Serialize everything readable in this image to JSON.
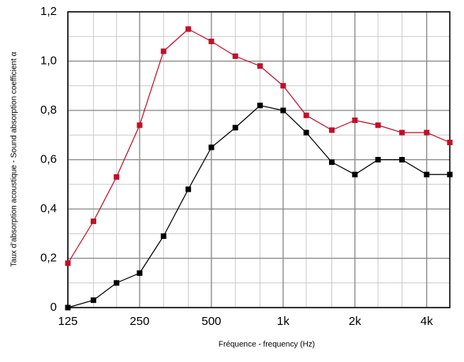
{
  "chart_data": {
    "type": "line",
    "x_label": "Fréquence - frequency (Hz)",
    "y_label": "Taux d'absorption acoustique - Sound absorption coefficient α",
    "x": [
      125,
      160,
      200,
      250,
      315,
      400,
      500,
      630,
      800,
      1000,
      1250,
      1600,
      2000,
      2500,
      3150,
      4000,
      5000
    ],
    "series": [
      {
        "color": "#c0102a",
        "values": [
          0.18,
          0.35,
          0.53,
          0.74,
          1.04,
          1.13,
          1.08,
          1.02,
          0.98,
          0.9,
          0.78,
          0.72,
          0.76,
          0.74,
          0.71,
          0.71,
          0.67
        ]
      },
      {
        "color": "#000000",
        "values": [
          0.0,
          0.03,
          0.1,
          0.14,
          0.29,
          0.48,
          0.65,
          0.73,
          0.82,
          0.8,
          0.71,
          0.59,
          0.54,
          0.6,
          0.6,
          0.54,
          0.54
        ]
      }
    ],
    "x_log": true,
    "xlim": [
      125,
      5000
    ],
    "xticks": [
      125,
      250,
      500,
      {
        "value": 1000,
        "label": "1k"
      },
      {
        "value": 2000,
        "label": "2k"
      },
      {
        "value": 4000,
        "label": "4k"
      }
    ],
    "xminorticks": [
      160,
      200,
      315,
      400,
      630,
      800,
      1250,
      1600,
      2500,
      3150
    ],
    "ylim": [
      0,
      1.2
    ],
    "yticks": [
      0,
      {
        "value": 0.2,
        "label": "0,2"
      },
      {
        "value": 0.4,
        "label": "0,4"
      },
      {
        "value": 0.6,
        "label": "0,6"
      },
      {
        "value": 0.8,
        "label": "0,8"
      },
      {
        "value": 1.0,
        "label": "1,0"
      },
      {
        "value": 1.2,
        "label": "1,2"
      }
    ],
    "yminorticks": [
      0.1,
      0.3,
      0.5,
      0.7,
      0.9,
      1.1
    ],
    "grid": true
  }
}
